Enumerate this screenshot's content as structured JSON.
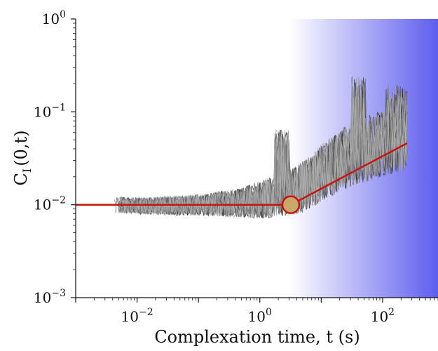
{
  "chart_data": {
    "type": "line",
    "title": "",
    "xlabel": "Complexation time, t (s)",
    "ylabel": "C",
    "ylabel_subscript": "I",
    "ylabel_suffix": "(0,t)",
    "x_scale": "log",
    "y_scale": "log",
    "xlim": [
      0.001,
      800
    ],
    "ylim": [
      0.001,
      1
    ],
    "x_ticks": [
      {
        "value": 0.01,
        "base": "10",
        "exp": "−2"
      },
      {
        "value": 1,
        "base": "10",
        "exp": "0"
      },
      {
        "value": 100,
        "base": "10",
        "exp": "2"
      }
    ],
    "y_ticks": [
      {
        "value": 0.001,
        "base": "10",
        "exp": "−3"
      },
      {
        "value": 0.01,
        "base": "10",
        "exp": "−2"
      },
      {
        "value": 0.1,
        "base": "10",
        "exp": "−1"
      },
      {
        "value": 1,
        "base": "10",
        "exp": "0"
      }
    ],
    "grid": false,
    "traces": {
      "count": 20,
      "x_range": [
        0.004,
        250
      ],
      "band_lower": [
        [
          0.004,
          0.0075
        ],
        [
          0.01,
          0.0072
        ],
        [
          0.1,
          0.0068
        ],
        [
          0.5,
          0.0062
        ],
        [
          1,
          0.0058
        ],
        [
          3,
          0.006
        ],
        [
          6,
          0.0065
        ],
        [
          10,
          0.008
        ],
        [
          30,
          0.011
        ],
        [
          100,
          0.014
        ],
        [
          250,
          0.016
        ]
      ],
      "band_upper": [
        [
          0.004,
          0.0135
        ],
        [
          0.01,
          0.013
        ],
        [
          0.1,
          0.0145
        ],
        [
          0.5,
          0.018
        ],
        [
          1,
          0.022
        ],
        [
          3,
          0.03
        ],
        [
          6,
          0.042
        ],
        [
          10,
          0.06
        ],
        [
          30,
          0.11
        ],
        [
          100,
          0.15
        ],
        [
          250,
          0.17
        ]
      ],
      "spike_peaks": [
        [
          2.3,
          0.065
        ],
        [
          40,
          0.24
        ],
        [
          150,
          0.2
        ],
        [
          260,
          0.18
        ]
      ]
    },
    "fit_line": {
      "color": "#cc1111",
      "points": [
        [
          0.001,
          0.01
        ],
        [
          3.2,
          0.01
        ],
        [
          250,
          0.046
        ]
      ]
    },
    "crossover_marker": {
      "x": 3.2,
      "y": 0.01,
      "fill": "#c8a86a",
      "stroke": "#cc1111"
    },
    "shaded_region": {
      "x_start": 3,
      "x_end": 800,
      "color": "#5555ee"
    }
  }
}
